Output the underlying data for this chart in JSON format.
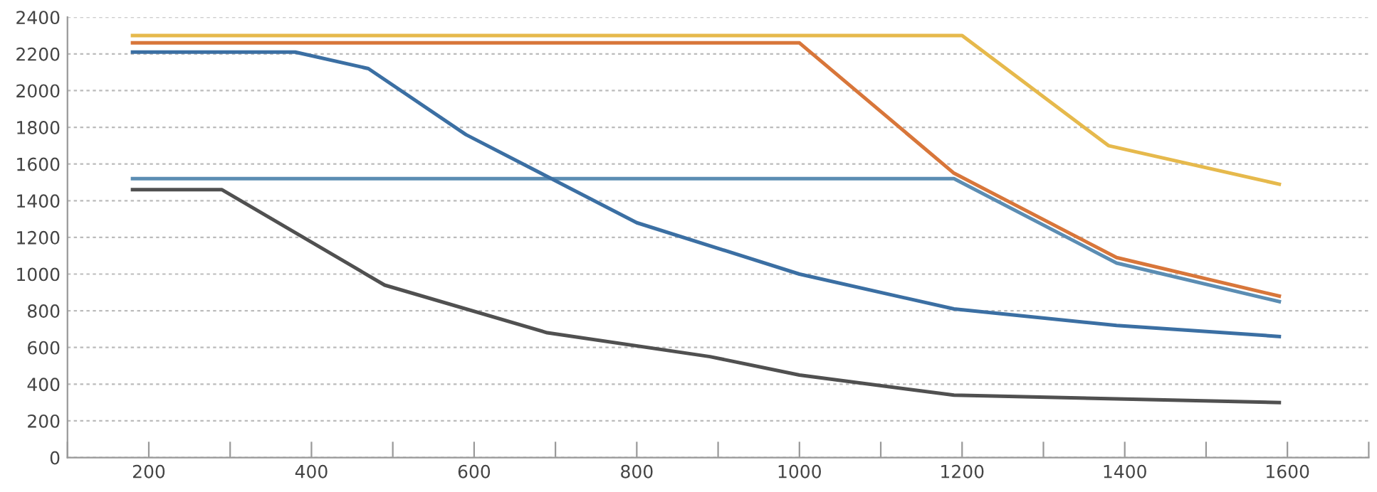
{
  "chart_data": {
    "type": "line",
    "xlim": [
      100,
      1700
    ],
    "ylim": [
      0,
      2400
    ],
    "xticks": [
      {
        "value": 100,
        "label": null
      },
      200,
      {
        "value": 300,
        "label": null
      },
      400,
      {
        "value": 500,
        "label": null
      },
      600,
      {
        "value": 700,
        "label": null
      },
      800,
      {
        "value": 900,
        "label": null
      },
      1000,
      {
        "value": 1100,
        "label": null
      },
      1200,
      {
        "value": 1300,
        "label": null
      },
      1400,
      {
        "value": 1500,
        "label": null
      },
      1600,
      {
        "value": 1700,
        "label": null
      }
    ],
    "yticks": [
      0,
      200,
      400,
      600,
      800,
      1000,
      1200,
      1400,
      1600,
      1800,
      2000,
      2200,
      2400
    ],
    "grid": "y",
    "legend": false,
    "marker": "none",
    "line_style": "solid",
    "series": [
      {
        "color": "#e6b94c",
        "x": [
          180,
          1200,
          1380,
          1590
        ],
        "values": [
          2300,
          2300,
          1700,
          1490
        ]
      },
      {
        "color": "#d8763a",
        "x": [
          180,
          1000,
          1190,
          1390,
          1590
        ],
        "values": [
          2260,
          2260,
          1550,
          1090,
          880
        ]
      },
      {
        "color": "#5b8db3",
        "x": [
          180,
          1190,
          1390,
          1590
        ],
        "values": [
          1520,
          1520,
          1060,
          850
        ]
      },
      {
        "color": "#3b6fa3",
        "x": [
          180,
          380,
          470,
          590,
          800,
          1000,
          1190,
          1390,
          1590
        ],
        "values": [
          2210,
          2210,
          2120,
          1760,
          1280,
          1000,
          810,
          720,
          660
        ]
      },
      {
        "color": "#505050",
        "x": [
          180,
          290,
          490,
          690,
          890,
          1000,
          1190,
          1590
        ],
        "values": [
          1460,
          1460,
          940,
          680,
          550,
          450,
          340,
          300
        ]
      }
    ]
  }
}
